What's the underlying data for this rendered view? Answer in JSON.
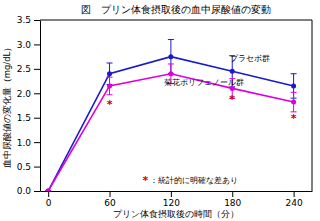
{
  "chart_data": {
    "type": "line",
    "title": "図　プリン体食摂取後の血中尿酸値の変動",
    "x_label": "プリン体食摂取後の時間（分）",
    "y_label": "血中尿酸値の変化量（mg/dL）",
    "x": [
      0,
      60,
      120,
      180,
      240
    ],
    "series": [
      {
        "color": "#1a1acc",
        "marker": "circle",
        "values": [
          0.0,
          2.4,
          2.75,
          2.45,
          2.15
        ],
        "errors": [
          0.0,
          0.22,
          0.35,
          0.32,
          0.25
        ]
      },
      {
        "color": "#dd00dd",
        "marker": "circle",
        "values": [
          0.0,
          2.15,
          2.4,
          2.1,
          1.82
        ],
        "errors": [
          0.0,
          0.18,
          0.2,
          0.2,
          0.2
        ]
      }
    ],
    "xlim": [
      -8,
      258
    ],
    "xticks": [
      0,
      60,
      120,
      180,
      240
    ],
    "ylim": [
      0.0,
      3.5
    ],
    "yticks": [
      {
        "value": 0.0,
        "label": "0.0"
      },
      0.5,
      {
        "value": 1.0,
        "label": "1.0"
      },
      1.5,
      {
        "value": 2.0,
        "label": "2.0"
      },
      2.5,
      {
        "value": 3.0,
        "label": "3.0"
      },
      3.5
    ],
    "annotations": [
      {
        "text": "*",
        "x": 60,
        "y": 1.78,
        "color": "#cc0000"
      },
      {
        "text": "*",
        "x": 180,
        "y": 1.87,
        "color": "#cc0000"
      },
      {
        "text": "*",
        "x": 240,
        "y": 1.48,
        "color": "#cc0000"
      },
      {
        "text": "プラセボ群",
        "x": 178,
        "y": 2.72
      },
      {
        "text": "菊花ポリフェノール群",
        "x": 113,
        "y": 2.22
      },
      {
        "text": "*",
        "x": 95,
        "y": 0.22,
        "color": "#cc0000"
      },
      {
        "text": "：統計的に明確な差あり",
        "x": 100,
        "y": 0.22
      }
    ]
  }
}
